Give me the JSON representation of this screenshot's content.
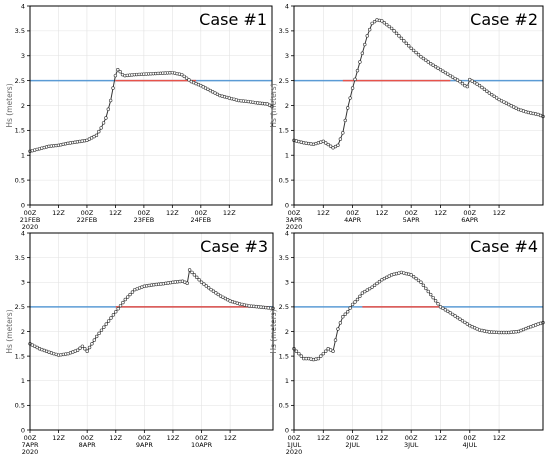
{
  "colors": {
    "series": "#333333",
    "marker": "#ffffff",
    "threshold_blue": "#5b9bd5",
    "exceed_red": "#e8534a",
    "grid": "#e2e2e2",
    "frame": "#000000"
  },
  "chart_data": [
    {
      "type": "line",
      "title": "Case #1",
      "ylabel": "Hs (meters)",
      "ylim": [
        0,
        4
      ],
      "yticks": [
        0,
        0.5,
        1,
        1.5,
        2,
        2.5,
        3,
        3.5,
        4
      ],
      "xlim": [
        0,
        102
      ],
      "xticks": [
        {
          "x": 0,
          "l1": "00Z",
          "l2": "21FEB",
          "l3": "2020"
        },
        {
          "x": 12,
          "l1": "12Z",
          "l2": "",
          "l3": ""
        },
        {
          "x": 24,
          "l1": "00Z",
          "l2": "22FEB",
          "l3": ""
        },
        {
          "x": 36,
          "l1": "12Z",
          "l2": "",
          "l3": ""
        },
        {
          "x": 48,
          "l1": "00Z",
          "l2": "23FEB",
          "l3": ""
        },
        {
          "x": 60,
          "l1": "12Z",
          "l2": "",
          "l3": ""
        },
        {
          "x": 72,
          "l1": "00Z",
          "l2": "24FEB",
          "l3": ""
        },
        {
          "x": 84,
          "l1": "12Z",
          "l2": "",
          "l3": ""
        }
      ],
      "threshold": 2.5,
      "exceedance": [
        36,
        70
      ],
      "series": [
        {
          "x": [
            0,
            8,
            12,
            16,
            24,
            28,
            30,
            32,
            34,
            35,
            36,
            37,
            38,
            39,
            40,
            44,
            48,
            52,
            56,
            60,
            64,
            66,
            68,
            72,
            76,
            80,
            84,
            88,
            92,
            96,
            100,
            102
          ],
          "y": [
            1.08,
            1.18,
            1.2,
            1.24,
            1.3,
            1.4,
            1.55,
            1.75,
            2.1,
            2.35,
            2.6,
            2.72,
            2.68,
            2.62,
            2.6,
            2.62,
            2.63,
            2.64,
            2.65,
            2.66,
            2.62,
            2.55,
            2.48,
            2.4,
            2.3,
            2.2,
            2.15,
            2.1,
            2.08,
            2.05,
            2.03,
            1.98
          ]
        }
      ]
    },
    {
      "type": "line",
      "title": "Case #2",
      "ylabel": "Hs (meters)",
      "ylim": [
        0,
        4
      ],
      "yticks": [
        0,
        0.5,
        1,
        1.5,
        2,
        2.5,
        3,
        3.5,
        4
      ],
      "xlim": [
        0,
        102
      ],
      "xticks": [
        {
          "x": 0,
          "l1": "00Z",
          "l2": "3APR",
          "l3": "2020"
        },
        {
          "x": 12,
          "l1": "12Z",
          "l2": "",
          "l3": ""
        },
        {
          "x": 24,
          "l1": "00Z",
          "l2": "4APR",
          "l3": ""
        },
        {
          "x": 36,
          "l1": "12Z",
          "l2": "",
          "l3": ""
        },
        {
          "x": 48,
          "l1": "00Z",
          "l2": "5APR",
          "l3": ""
        },
        {
          "x": 60,
          "l1": "12Z",
          "l2": "",
          "l3": ""
        },
        {
          "x": 72,
          "l1": "00Z",
          "l2": "6APR",
          "l3": ""
        },
        {
          "x": 84,
          "l1": "12Z",
          "l2": "",
          "l3": ""
        }
      ],
      "threshold": 2.5,
      "exceedance": [
        20,
        64
      ],
      "series": [
        {
          "x": [
            0,
            4,
            8,
            12,
            16,
            18,
            20,
            22,
            24,
            26,
            28,
            30,
            32,
            34,
            36,
            40,
            44,
            48,
            52,
            56,
            60,
            64,
            68,
            70,
            71,
            72,
            76,
            80,
            84,
            88,
            92,
            96,
            100,
            102
          ],
          "y": [
            1.3,
            1.25,
            1.22,
            1.28,
            1.15,
            1.2,
            1.45,
            1.95,
            2.35,
            2.7,
            3.05,
            3.4,
            3.65,
            3.72,
            3.7,
            3.55,
            3.35,
            3.15,
            2.98,
            2.84,
            2.72,
            2.6,
            2.48,
            2.4,
            2.38,
            2.52,
            2.4,
            2.25,
            2.12,
            2.02,
            1.92,
            1.86,
            1.82,
            1.78
          ]
        }
      ]
    },
    {
      "type": "line",
      "title": "Case #3",
      "ylabel": "Hs (meters)",
      "ylim": [
        0,
        4
      ],
      "yticks": [
        0,
        0.5,
        1,
        1.5,
        2,
        2.5,
        3,
        3.5,
        4
      ],
      "xlim": [
        0,
        102
      ],
      "xticks": [
        {
          "x": 0,
          "l1": "00Z",
          "l2": "7APR",
          "l3": "2020"
        },
        {
          "x": 12,
          "l1": "12Z",
          "l2": "",
          "l3": ""
        },
        {
          "x": 24,
          "l1": "00Z",
          "l2": "8APR",
          "l3": ""
        },
        {
          "x": 36,
          "l1": "12Z",
          "l2": "",
          "l3": ""
        },
        {
          "x": 48,
          "l1": "00Z",
          "l2": "9APR",
          "l3": ""
        },
        {
          "x": 60,
          "l1": "12Z",
          "l2": "",
          "l3": ""
        },
        {
          "x": 72,
          "l1": "00Z",
          "l2": "10APR",
          "l3": ""
        },
        {
          "x": 84,
          "l1": "12Z",
          "l2": "",
          "l3": ""
        }
      ],
      "threshold": 2.5,
      "exceedance": [
        36,
        100
      ],
      "series": [
        {
          "x": [
            0,
            4,
            8,
            12,
            16,
            20,
            22,
            24,
            28,
            32,
            36,
            40,
            44,
            48,
            52,
            56,
            60,
            64,
            66,
            67,
            68,
            72,
            76,
            80,
            84,
            88,
            92,
            96,
            100,
            102
          ],
          "y": [
            1.75,
            1.65,
            1.58,
            1.52,
            1.55,
            1.62,
            1.7,
            1.6,
            1.9,
            2.15,
            2.4,
            2.65,
            2.85,
            2.92,
            2.95,
            2.97,
            3.0,
            3.02,
            2.98,
            3.25,
            3.2,
            3.0,
            2.85,
            2.72,
            2.62,
            2.56,
            2.52,
            2.5,
            2.48,
            2.47
          ]
        }
      ]
    },
    {
      "type": "line",
      "title": "Case #4",
      "ylabel": "Hs (meters)",
      "ylim": [
        0,
        4
      ],
      "yticks": [
        0,
        0.5,
        1,
        1.5,
        2,
        2.5,
        3,
        3.5,
        4
      ],
      "xlim": [
        0,
        102
      ],
      "xticks": [
        {
          "x": 0,
          "l1": "00Z",
          "l2": "1JUL",
          "l3": "2020"
        },
        {
          "x": 12,
          "l1": "12Z",
          "l2": "",
          "l3": ""
        },
        {
          "x": 24,
          "l1": "00Z",
          "l2": "2JUL",
          "l3": ""
        },
        {
          "x": 36,
          "l1": "12Z",
          "l2": "",
          "l3": ""
        },
        {
          "x": 48,
          "l1": "00Z",
          "l2": "3JUL",
          "l3": ""
        },
        {
          "x": 60,
          "l1": "12Z",
          "l2": "",
          "l3": ""
        },
        {
          "x": 72,
          "l1": "00Z",
          "l2": "4JUL",
          "l3": ""
        },
        {
          "x": 84,
          "l1": "12Z",
          "l2": "",
          "l3": ""
        }
      ],
      "threshold": 2.5,
      "exceedance": [
        28,
        60
      ],
      "series": [
        {
          "x": [
            0,
            2,
            4,
            6,
            8,
            10,
            12,
            14,
            16,
            18,
            20,
            22,
            24,
            26,
            28,
            32,
            36,
            40,
            44,
            48,
            52,
            56,
            60,
            64,
            68,
            72,
            76,
            80,
            84,
            88,
            92,
            96,
            100,
            102
          ],
          "y": [
            1.65,
            1.55,
            1.45,
            1.45,
            1.43,
            1.45,
            1.55,
            1.65,
            1.6,
            2.05,
            2.3,
            2.4,
            2.55,
            2.65,
            2.78,
            2.9,
            3.05,
            3.15,
            3.2,
            3.15,
            3.0,
            2.75,
            2.5,
            2.38,
            2.25,
            2.12,
            2.03,
            1.99,
            1.98,
            1.98,
            2.0,
            2.08,
            2.15,
            2.18
          ]
        }
      ]
    }
  ]
}
